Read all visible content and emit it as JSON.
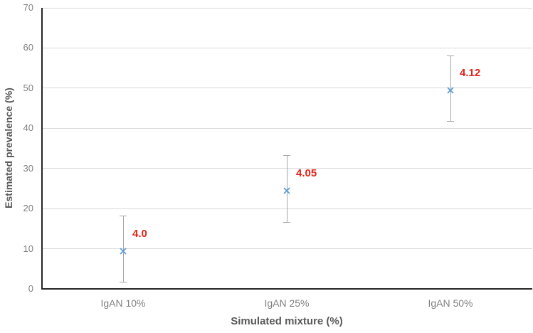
{
  "chart_data": {
    "type": "scatter",
    "title": "",
    "xlabel": "Simulated mixture (%)",
    "ylabel": "Estimated prevalence (%)",
    "categories": [
      "IgAN 10%",
      "IgAN 25%",
      "IgAN 50%"
    ],
    "points": [
      {
        "category": "IgAN 10%",
        "value": 10,
        "err_low": 1.8,
        "err_high": 18.2,
        "label": "4.0"
      },
      {
        "category": "IgAN 25%",
        "value": 25,
        "err_low": 16.6,
        "err_high": 33.4,
        "label": "4.05"
      },
      {
        "category": "IgAN 50%",
        "value": 50,
        "err_low": 41.8,
        "err_high": 58.2,
        "label": "4.12"
      }
    ],
    "ylim": [
      0,
      70
    ],
    "y_ticks": [
      0,
      10,
      20,
      30,
      40,
      50,
      60,
      70
    ],
    "grid": true,
    "legend": false,
    "marker": "x"
  },
  "colors": {
    "marker": "#5b9bd5",
    "error_bar": "#a6a6a6",
    "gridline": "#d9d9d9",
    "axis_line": "#262626",
    "tick_label": "#808080",
    "axis_title": "#595959",
    "data_label": "#e2231a"
  }
}
